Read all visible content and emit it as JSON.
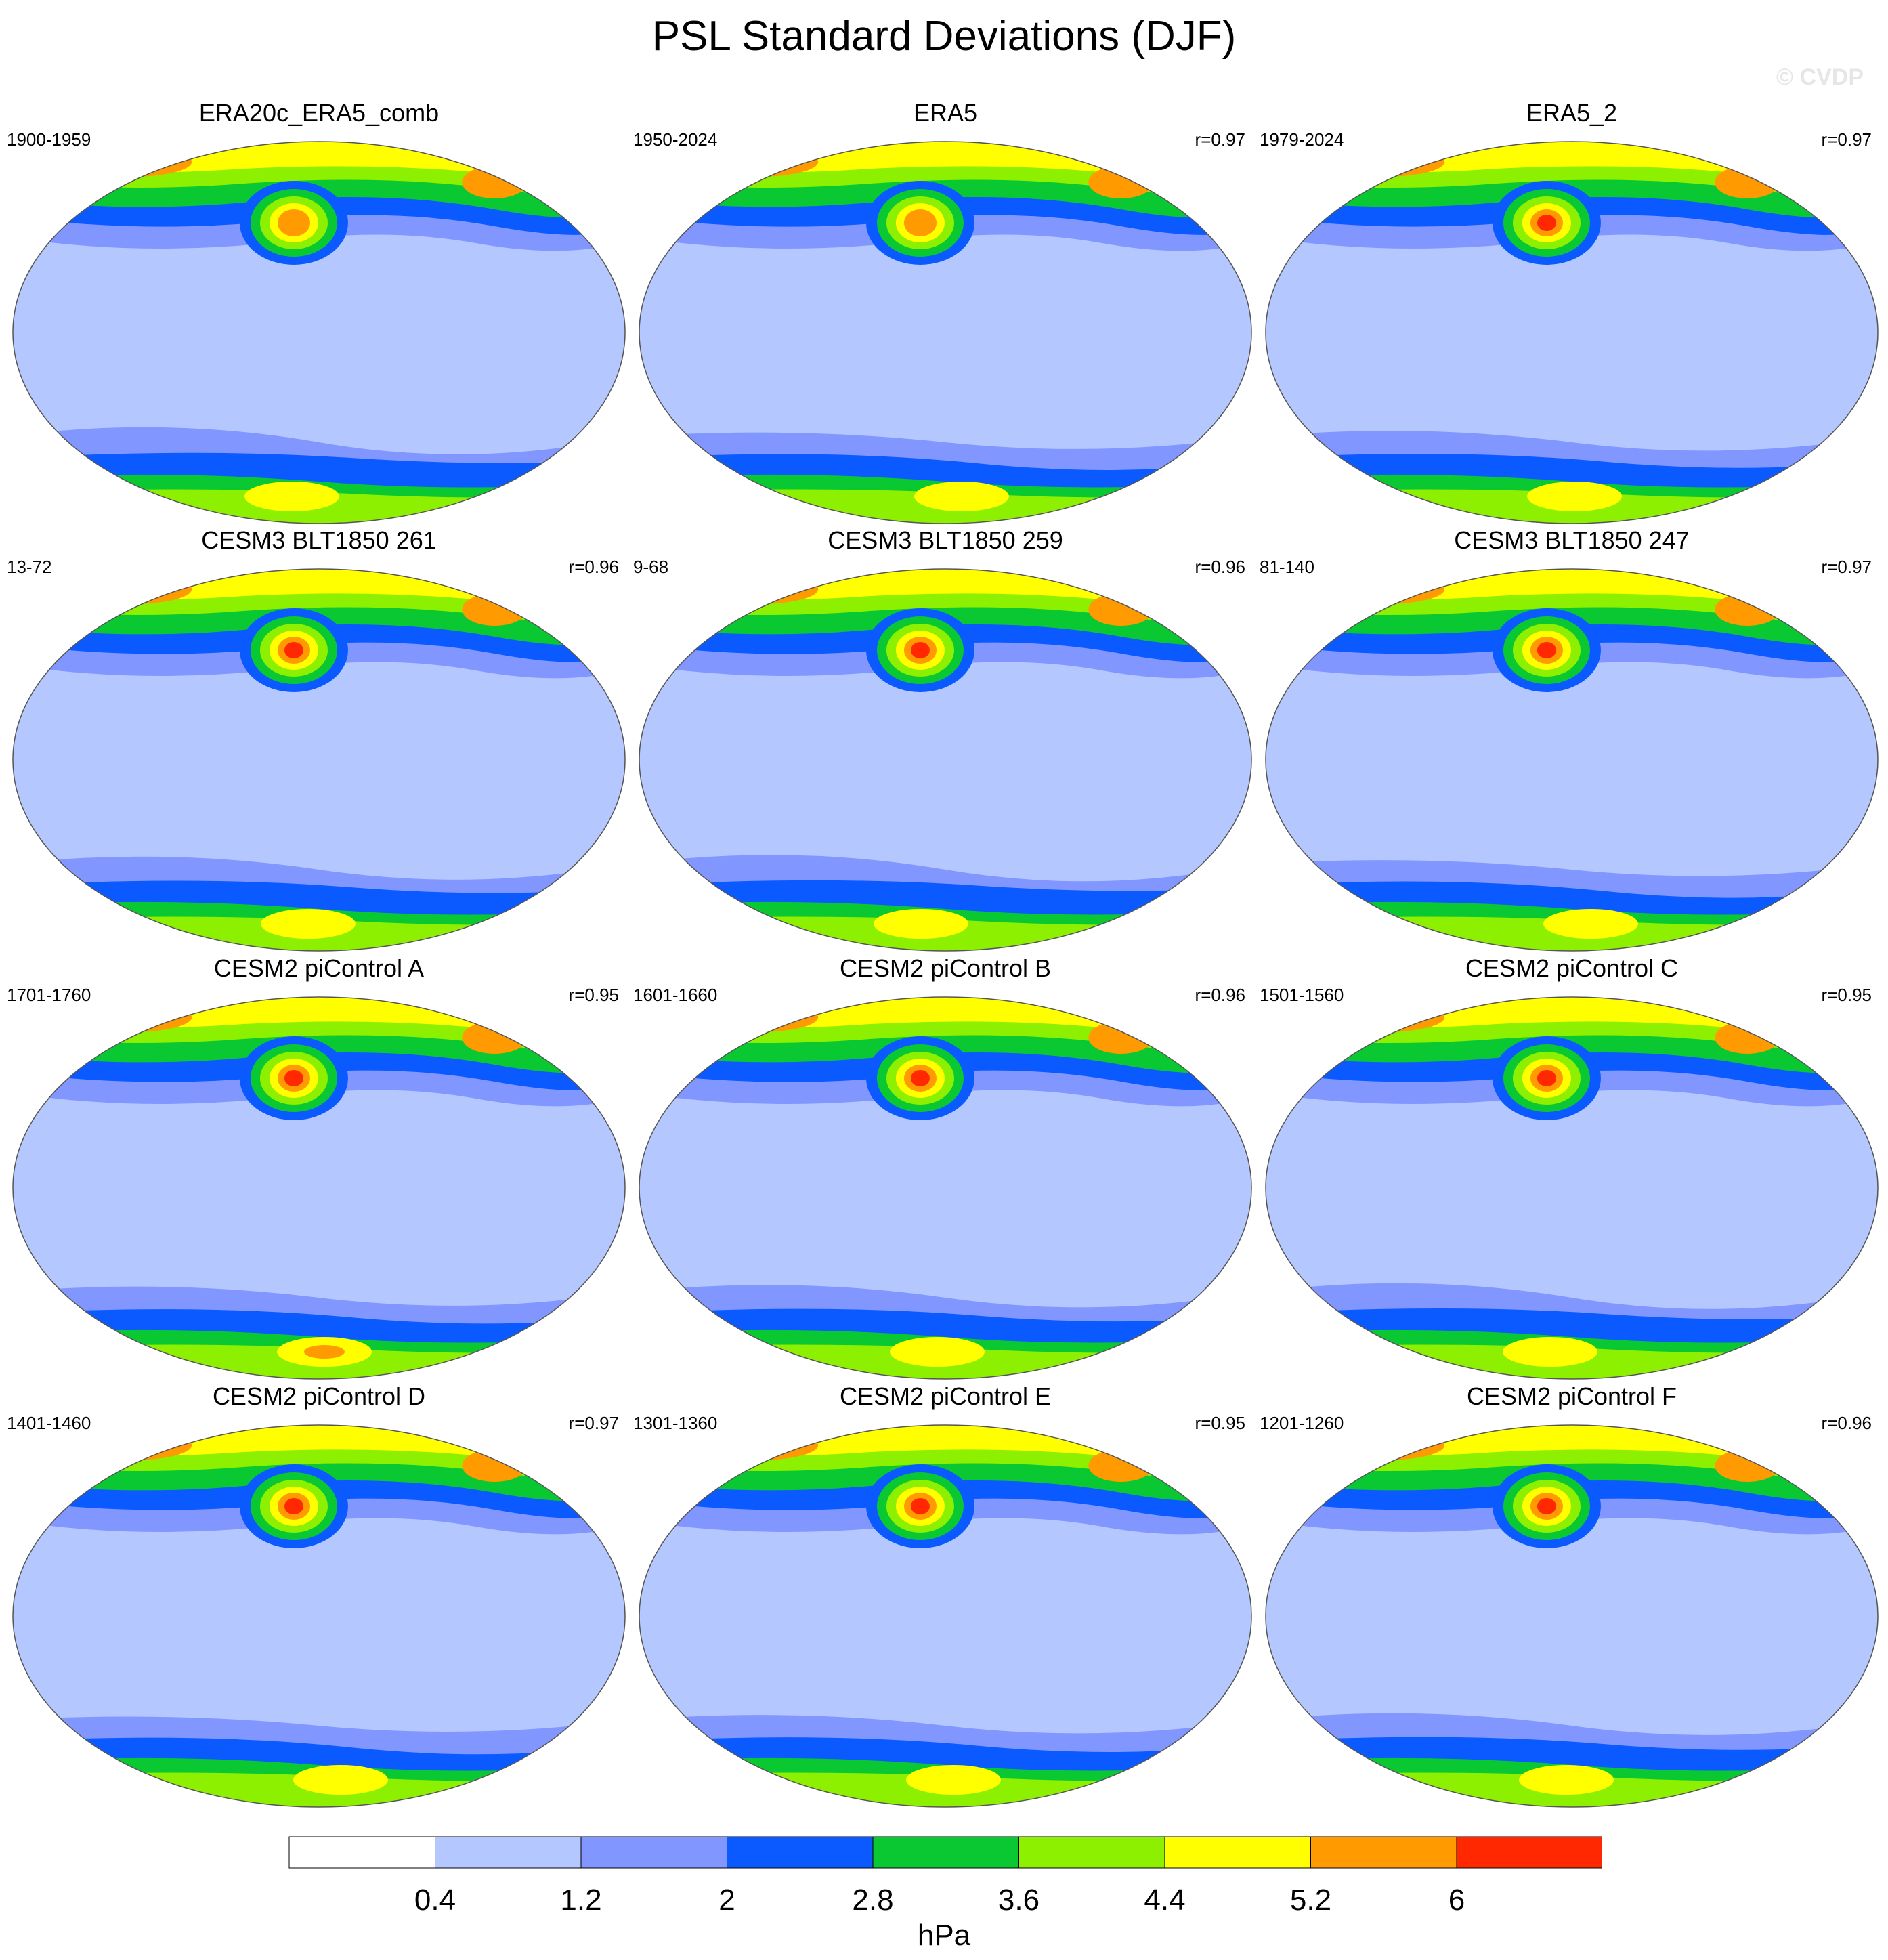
{
  "title": "PSL Standard Deviations (DJF)",
  "watermark": "© CVDP",
  "units": "hPa",
  "colorbar": {
    "ticks": [
      "0.4",
      "1.2",
      "2",
      "2.8",
      "3.6",
      "4.4",
      "5.2",
      "6"
    ],
    "colors": [
      "#ffffff",
      "#b4c8ff",
      "#8296ff",
      "#0a5aff",
      "#0ac832",
      "#8cf000",
      "#ffff00",
      "#ff9a00",
      "#ff2800"
    ]
  },
  "chart_data": {
    "type": "heatmap",
    "title": "PSL Standard Deviations (DJF)",
    "colorbar_label": "hPa",
    "levels": [
      0.4,
      1.2,
      2,
      2.8,
      3.6,
      4.4,
      5.2,
      6
    ],
    "panels": [
      {
        "name": "ERA20c_ERA5_comb",
        "years": "1900-1959",
        "r": "",
        "nh_max": 5.6,
        "sh_max": 5.0
      },
      {
        "name": "ERA5",
        "years": "1950-2024",
        "r": "r=0.97",
        "nh_max": 5.6,
        "sh_max": 4.8
      },
      {
        "name": "ERA5_2",
        "years": "1979-2024",
        "r": "r=0.97",
        "nh_max": 6.2,
        "sh_max": 4.8
      },
      {
        "name": "CESM3 BLT1850 261",
        "years": "13-72",
        "r": "r=0.96",
        "nh_max": 6.1,
        "sh_max": 4.6
      },
      {
        "name": "CESM3 BLT1850 259",
        "years": "9-68",
        "r": "r=0.96",
        "nh_max": 6.1,
        "sh_max": 4.8
      },
      {
        "name": "CESM3 BLT1850 247",
        "years": "81-140",
        "r": "r=0.97",
        "nh_max": 6.2,
        "sh_max": 5.0
      },
      {
        "name": "CESM2 piControl A",
        "years": "1701-1760",
        "r": "r=0.95",
        "nh_max": 6.6,
        "sh_max": 5.6
      },
      {
        "name": "CESM2 piControl B",
        "years": "1601-1660",
        "r": "r=0.96",
        "nh_max": 6.3,
        "sh_max": 4.6
      },
      {
        "name": "CESM2 piControl C",
        "years": "1501-1560",
        "r": "r=0.95",
        "nh_max": 6.3,
        "sh_max": 4.6
      },
      {
        "name": "CESM2 piControl D",
        "years": "1401-1460",
        "r": "r=0.97",
        "nh_max": 6.1,
        "sh_max": 4.8
      },
      {
        "name": "CESM2 piControl E",
        "years": "1301-1360",
        "r": "r=0.95",
        "nh_max": 6.2,
        "sh_max": 4.8
      },
      {
        "name": "CESM2 piControl F",
        "years": "1201-1260",
        "r": "r=0.96",
        "nh_max": 6.6,
        "sh_max": 5.0
      }
    ]
  }
}
